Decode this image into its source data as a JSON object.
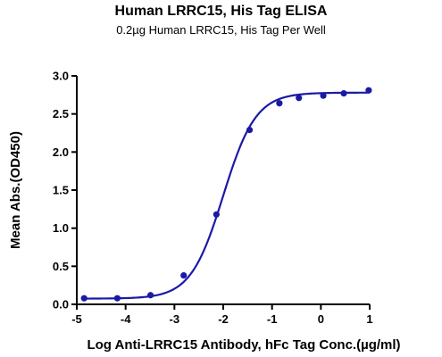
{
  "chart_data": {
    "type": "scatter",
    "title": "Human LRRC15, His Tag ELISA",
    "subtitle": "0.2µg Human LRRC15, His Tag Per Well",
    "xlabel": "Log Anti-LRRC15 Antibody, hFc Tag Conc.(µg/ml)",
    "ylabel": "Mean Abs.(OD450)",
    "xlim": [
      -5,
      1
    ],
    "ylim": [
      0,
      3.0
    ],
    "xticks": [
      "-5",
      "-4",
      "-3",
      "-2",
      "-1",
      "0",
      "1"
    ],
    "yticks": [
      "0.0",
      "0.5",
      "1.0",
      "1.5",
      "2.0",
      "2.5",
      "3.0"
    ],
    "grid": false,
    "series": [
      {
        "points": [
          {
            "x": -4.85,
            "y": 0.08
          },
          {
            "x": -4.17,
            "y": 0.08
          },
          {
            "x": -3.49,
            "y": 0.12
          },
          {
            "x": -2.81,
            "y": 0.38
          },
          {
            "x": -2.14,
            "y": 1.18
          },
          {
            "x": -1.46,
            "y": 2.29
          },
          {
            "x": -0.85,
            "y": 2.64
          },
          {
            "x": -0.45,
            "y": 2.71
          },
          {
            "x": 0.05,
            "y": 2.74
          },
          {
            "x": 0.47,
            "y": 2.77
          },
          {
            "x": 0.98,
            "y": 2.81
          }
        ],
        "fit": {
          "bottom": 0.075,
          "top": 2.78,
          "log_ec50": -2.0,
          "hill": 1.3
        },
        "color": "#1a1aa6"
      }
    ]
  }
}
